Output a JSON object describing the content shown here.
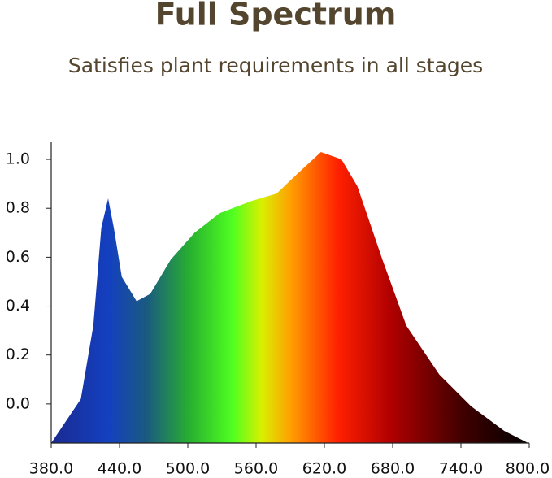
{
  "chart_data": {
    "type": "area",
    "title": "Full Spectrum",
    "subtitle": "Satisfies plant requirements in all stages",
    "x": [
      380,
      406,
      417,
      424,
      430,
      435,
      442,
      455,
      467,
      485,
      506,
      528,
      556,
      578,
      596,
      617,
      635,
      649,
      671,
      692,
      721,
      749,
      778,
      799
    ],
    "values": [
      -0.16,
      0.02,
      0.32,
      0.72,
      0.84,
      0.72,
      0.52,
      0.42,
      0.45,
      0.59,
      0.7,
      0.78,
      0.83,
      0.86,
      0.94,
      1.03,
      1.0,
      0.89,
      0.59,
      0.32,
      0.12,
      -0.01,
      -0.11,
      -0.16
    ],
    "xlim": [
      380,
      800
    ],
    "ylim": [
      -0.16,
      1.07
    ],
    "xticks": [
      {
        "value": 380,
        "label": "380.0"
      },
      {
        "value": 440,
        "label": "440.0"
      },
      {
        "value": 500,
        "label": "500.0"
      },
      {
        "value": 560,
        "label": "560.0"
      },
      {
        "value": 620,
        "label": "620.0"
      },
      {
        "value": 680,
        "label": "680.0"
      },
      {
        "value": 740,
        "label": "740.0"
      },
      {
        "value": 800,
        "label": "800.0"
      }
    ],
    "yticks": [
      {
        "value": 0,
        "label": "0.0"
      },
      0.2,
      0.4,
      0.6,
      0.8,
      {
        "value": 1,
        "label": "1.0"
      }
    ]
  }
}
